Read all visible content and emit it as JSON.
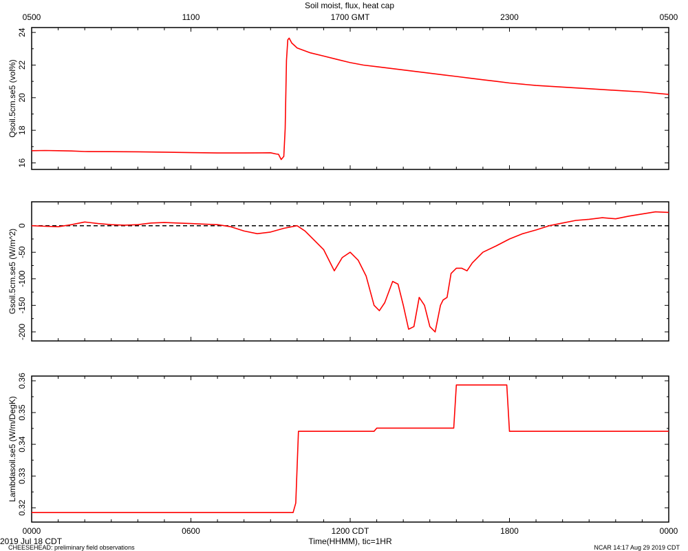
{
  "chart_data": {
    "title": "Soil moist, flux, heat cap",
    "type": "line",
    "x_start_label": "2019 Jul 18 CDT",
    "x_axis_label": "Time(HHMM), tic=1HR",
    "bottom_ticks": [
      "0000",
      "0600",
      "1200 CDT",
      "1800",
      "0000"
    ],
    "top_ticks": [
      "0500",
      "1100",
      "1700 GMT",
      "2300",
      "0500"
    ],
    "xlim_hours": [
      0,
      24
    ],
    "line_color": "#ff0000",
    "panels": [
      {
        "ylabel": "Qsoil.5cm.se5 (vol%)",
        "ylim": [
          15.6,
          24.3
        ],
        "yticks": [
          16,
          18,
          20,
          22,
          24
        ],
        "zero_line": false,
        "step": false,
        "x": [
          0,
          0.5,
          1,
          1.5,
          2,
          3,
          4,
          5,
          6,
          7,
          8,
          9,
          9.2,
          9.3,
          9.4,
          9.5,
          9.55,
          9.6,
          9.65,
          9.7,
          9.8,
          9.9,
          10,
          10.5,
          11,
          11.5,
          12,
          12.5,
          13,
          13.5,
          14,
          14.5,
          15,
          15.5,
          16,
          16.5,
          17,
          17.5,
          18,
          19,
          20,
          21,
          22,
          23,
          24
        ],
        "y": [
          16.75,
          16.76,
          16.75,
          16.73,
          16.7,
          16.69,
          16.68,
          16.66,
          16.63,
          16.61,
          16.61,
          16.62,
          16.55,
          16.53,
          16.21,
          16.4,
          18.1,
          22.3,
          23.55,
          23.65,
          23.35,
          23.2,
          23.05,
          22.75,
          22.55,
          22.35,
          22.15,
          22.0,
          21.9,
          21.8,
          21.7,
          21.6,
          21.5,
          21.4,
          21.3,
          21.2,
          21.1,
          21.0,
          20.9,
          20.75,
          20.65,
          20.55,
          20.45,
          20.35,
          20.2
        ]
      },
      {
        "ylabel": "Gsoil.5cm.se5 (W/m^2)",
        "ylim": [
          -217,
          45
        ],
        "yticks": [
          -200,
          -150,
          -100,
          -50,
          0
        ],
        "zero_line": true,
        "step": false,
        "x": [
          0,
          0.5,
          1,
          1.5,
          2,
          2.5,
          3,
          3.5,
          4,
          4.5,
          5,
          5.5,
          6,
          6.5,
          7,
          7.5,
          8,
          8.5,
          9,
          9.5,
          10,
          10.3,
          10.7,
          11,
          11.4,
          11.7,
          12,
          12.3,
          12.6,
          12.9,
          13.1,
          13.3,
          13.6,
          13.8,
          14,
          14.2,
          14.4,
          14.6,
          14.8,
          15.0,
          15.2,
          15.4,
          15.5,
          15.65,
          15.8,
          16.0,
          16.2,
          16.4,
          16.6,
          17,
          17.5,
          18,
          18.5,
          19,
          19.5,
          20,
          20.5,
          21,
          21.5,
          22,
          22.5,
          23,
          23.5,
          24
        ],
        "y": [
          0,
          -1,
          -2,
          2,
          7,
          4,
          2,
          1,
          2,
          5,
          6,
          5,
          4,
          3,
          2,
          -2,
          -10,
          -15,
          -12,
          -5,
          0,
          -10,
          -30,
          -45,
          -85,
          -60,
          -50,
          -65,
          -95,
          -150,
          -160,
          -145,
          -105,
          -110,
          -150,
          -195,
          -190,
          -135,
          -150,
          -190,
          -200,
          -150,
          -140,
          -135,
          -90,
          -80,
          -80,
          -85,
          -70,
          -50,
          -38,
          -25,
          -15,
          -8,
          0,
          5,
          10,
          12,
          15,
          13,
          18,
          22,
          26,
          25
        ]
      },
      {
        "ylabel": "Lambdasoil.se5 (W/m/DegK)",
        "ylim": [
          0.3155,
          0.3615
        ],
        "yticks": [
          0.32,
          0.33,
          0.34,
          0.35,
          0.36
        ],
        "zero_line": false,
        "step": true,
        "x": [
          0,
          9.85,
          9.95,
          10.05,
          12.9,
          13.0,
          15.9,
          16.0,
          17.9,
          18.0,
          24
        ],
        "y": [
          0.3185,
          0.3185,
          0.3215,
          0.3441,
          0.3441,
          0.3451,
          0.3451,
          0.3587,
          0.3587,
          0.3441,
          0.3441
        ]
      }
    ]
  },
  "footer": {
    "left": "CHEESEHEAD: preliminary field observations",
    "right": "NCAR 14:17 Aug 29 2019 CDT"
  }
}
